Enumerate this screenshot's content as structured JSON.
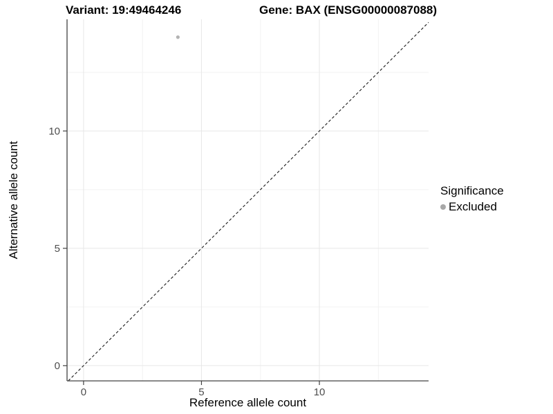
{
  "header": {
    "variant_title": "Variant: 19:49464246",
    "gene_title": "Gene: BAX (ENSG00000087088)"
  },
  "chart_data": {
    "type": "scatter",
    "title": "Variant: 19:49464246 | Gene: BAX (ENSG00000087088)",
    "xlabel": "Reference allele count",
    "ylabel": "Alternative allele count",
    "xlim": [
      -0.7,
      14.63
    ],
    "ylim": [
      -0.65,
      14.76
    ],
    "x_ticks": [
      0,
      5,
      10
    ],
    "y_ticks": [
      0,
      5,
      10
    ],
    "x_minor_ticks": [
      2.5,
      7.5,
      12.5
    ],
    "y_minor_ticks": [
      2.5,
      7.5,
      12.5
    ],
    "grid": true,
    "series": [
      {
        "name": "Excluded",
        "color": "#b3b3b3",
        "points": [
          {
            "x": 4,
            "y": 14
          }
        ]
      }
    ],
    "reference_line": {
      "equation": "y = x",
      "style": "dashed",
      "color": "#1a1a1a"
    },
    "legend": {
      "title": "Significance",
      "position": "right",
      "items": [
        {
          "label": "Excluded",
          "color": "#a8a8a8",
          "marker": "circle"
        }
      ]
    },
    "style": {
      "background": "#ffffff",
      "grid_major": "#e7e7e7",
      "grid_minor": "#f2f2f2",
      "axis_line": "#404040",
      "tick_text": "#4d4d4d",
      "tick_font_size": 15
    }
  }
}
